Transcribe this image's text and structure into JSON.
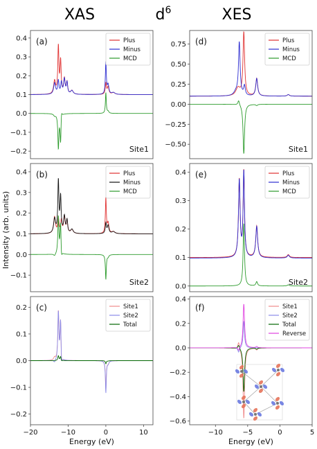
{
  "header": {
    "left_title": "XAS",
    "center_title": "d",
    "center_sup": "6",
    "right_title": "XES"
  },
  "ylabel": "Intensity (arb. units)",
  "colors": {
    "plus": "#e03030",
    "minus": "#2c2cd0",
    "minus_black": "#111111",
    "mcd": "#2a9a2a",
    "site1_light": "#f08a8a",
    "site2_light": "#8a8ae8",
    "total": "#006400",
    "reverse": "#e040e0"
  },
  "chart_data": [
    {
      "id": "a",
      "panel_label": "(a)",
      "type": "line",
      "xlim": [
        -20,
        12.5
      ],
      "ylim": [
        -0.24,
        0.44
      ],
      "yticks": [
        -0.2,
        -0.1,
        0.0,
        0.1,
        0.2,
        0.3,
        0.4
      ],
      "ytick_labels": [
        "−0.2",
        "−0.1",
        "0.0",
        "0.1",
        "0.2",
        "0.3",
        "0.4"
      ],
      "legend": [
        "Plus",
        "Minus",
        "MCD"
      ],
      "site_label": "Site1",
      "series": [
        {
          "name": "Plus",
          "color_key": "plus",
          "kind": "xas_a_plus"
        },
        {
          "name": "Minus",
          "color_key": "minus",
          "kind": "xas_a_minus"
        },
        {
          "name": "MCD",
          "color_key": "mcd",
          "kind": "xas_a_mcd"
        }
      ]
    },
    {
      "id": "b",
      "panel_label": "(b)",
      "type": "line",
      "xlim": [
        -20,
        12.5
      ],
      "ylim": [
        -0.18,
        0.44
      ],
      "yticks": [
        -0.1,
        0.0,
        0.1,
        0.2,
        0.3,
        0.4
      ],
      "ytick_labels": [
        "−0.1",
        "0.0",
        "0.1",
        "0.2",
        "0.3",
        "0.4"
      ],
      "legend": [
        "Plus",
        "Minus",
        "MCD"
      ],
      "site_label": "Site2",
      "series": [
        {
          "name": "Plus",
          "color_key": "plus",
          "kind": "xas_b_plus"
        },
        {
          "name": "Minus",
          "color_key": "minus_black",
          "kind": "xas_b_minus"
        },
        {
          "name": "MCD",
          "color_key": "mcd",
          "kind": "xas_b_mcd"
        }
      ]
    },
    {
      "id": "c",
      "panel_label": "(c)",
      "type": "line",
      "xlim": [
        -20,
        12.5
      ],
      "ylim": [
        -0.24,
        0.24
      ],
      "yticks": [
        -0.2,
        -0.1,
        0.0,
        0.1,
        0.2
      ],
      "ytick_labels": [
        "−0.2",
        "−0.1",
        "0.0",
        "0.1",
        "0.2"
      ],
      "xticks": [
        -20,
        -10,
        0,
        10
      ],
      "xtick_labels": [
        "−20",
        "−10",
        "0",
        "10"
      ],
      "xlabel": "Energy (eV)",
      "legend": [
        "Site1",
        "Site2",
        "Total"
      ],
      "series": [
        {
          "name": "Site1",
          "color_key": "site1_light",
          "kind": "xas_c_site1"
        },
        {
          "name": "Site2",
          "color_key": "site2_light",
          "kind": "xas_c_site2"
        },
        {
          "name": "Total",
          "color_key": "total",
          "kind": "xas_c_total"
        }
      ]
    },
    {
      "id": "d",
      "panel_label": "(d)",
      "type": "line",
      "xlim": [
        -14,
        5
      ],
      "ylim": [
        -0.68,
        0.92
      ],
      "yticks": [
        -0.5,
        -0.25,
        0.0,
        0.25,
        0.5,
        0.75
      ],
      "ytick_labels": [
        "−0.50",
        "−0.25",
        "0.00",
        "0.25",
        "0.50",
        "0.75"
      ],
      "legend": [
        "Plus",
        "Minus",
        "MCD"
      ],
      "site_label": "Site1",
      "series": [
        {
          "name": "Plus",
          "color_key": "plus",
          "kind": "xes_d_plus"
        },
        {
          "name": "Minus",
          "color_key": "minus",
          "kind": "xes_d_minus"
        },
        {
          "name": "MCD",
          "color_key": "mcd",
          "kind": "xes_d_mcd"
        }
      ]
    },
    {
      "id": "e",
      "panel_label": "(e)",
      "type": "line",
      "xlim": [
        -14,
        5
      ],
      "ylim": [
        -0.02,
        0.43
      ],
      "yticks": [
        0.0,
        0.1,
        0.2,
        0.3,
        0.4
      ],
      "ytick_labels": [
        "0.0",
        "0.1",
        "0.2",
        "0.3",
        "0.4"
      ],
      "legend": [
        "Plus",
        "Minus",
        "MCD"
      ],
      "site_label": "Site2",
      "series": [
        {
          "name": "Plus",
          "color_key": "plus",
          "kind": "xes_e_plus"
        },
        {
          "name": "Minus",
          "color_key": "minus",
          "kind": "xes_e_minus"
        },
        {
          "name": "MCD",
          "color_key": "mcd",
          "kind": "xes_e_mcd"
        }
      ]
    },
    {
      "id": "f",
      "panel_label": "(f)",
      "type": "line",
      "xlim": [
        -14,
        5
      ],
      "ylim": [
        -0.63,
        0.42
      ],
      "yticks": [
        -0.6,
        -0.4,
        -0.2,
        0.0,
        0.2,
        0.4
      ],
      "ytick_labels": [
        "−0.6",
        "−0.4",
        "−0.2",
        "0.0",
        "0.2",
        "0.4"
      ],
      "xticks": [
        -10,
        -5,
        0,
        5
      ],
      "xtick_labels": [
        "−10",
        "−5",
        "0",
        "5"
      ],
      "xlabel": "Energy (eV)",
      "legend": [
        "Site1",
        "Site2",
        "Total",
        "Reverse"
      ],
      "series": [
        {
          "name": "Site1",
          "color_key": "site1_light",
          "kind": "xes_f_site1"
        },
        {
          "name": "Site2",
          "color_key": "site2_light",
          "kind": "xes_f_site2"
        },
        {
          "name": "Total",
          "color_key": "total",
          "kind": "xes_f_total"
        },
        {
          "name": "Reverse",
          "color_key": "reverse",
          "kind": "xes_f_reverse"
        }
      ]
    }
  ]
}
